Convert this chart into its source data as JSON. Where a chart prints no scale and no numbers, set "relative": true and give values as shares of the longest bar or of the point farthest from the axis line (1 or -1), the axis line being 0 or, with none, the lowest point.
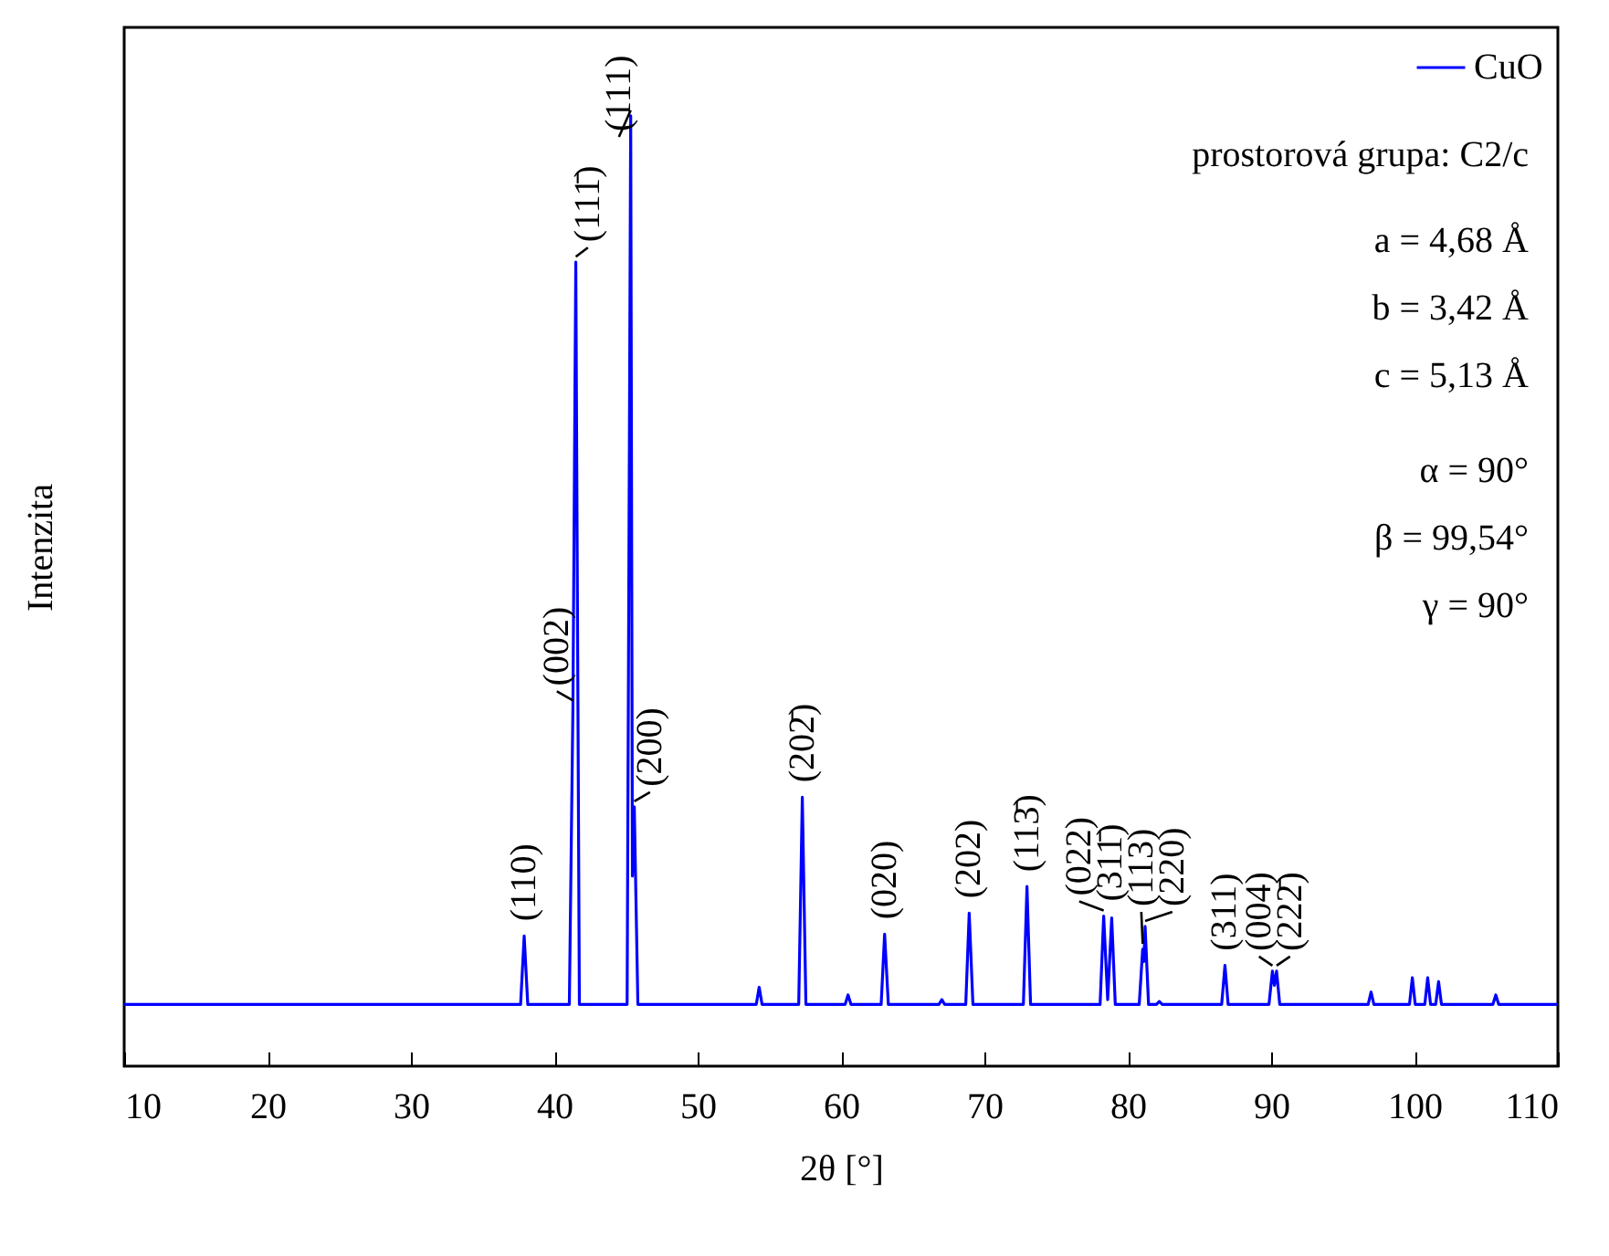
{
  "chart_data": {
    "type": "line",
    "xlabel": "2θ [°]",
    "ylabel": "Intenzita",
    "relative": true,
    "xlim": [
      10,
      110
    ],
    "xticks": [
      10,
      20,
      30,
      40,
      50,
      60,
      70,
      80,
      90,
      100,
      110
    ],
    "legend": "top right",
    "series": [
      {
        "name": "CuO",
        "color": "#0000ff",
        "x": [
          10,
          37.65,
          37.9,
          38.15,
          41.05,
          41.3,
          41.5,
          41.75,
          45.08,
          45.33,
          45.45,
          45.58,
          45.83,
          54.09,
          54.29,
          54.49,
          57.05,
          57.3,
          57.55,
          60.29,
          60.49,
          60.69,
          62.8,
          63.04,
          63.3,
          66.83,
          67.03,
          67.23,
          68.7,
          68.94,
          69.2,
          72.72,
          72.97,
          73.22,
          78.07,
          78.32,
          78.6,
          78.88,
          79.13,
          80.8,
          81.04,
          81.12,
          81.21,
          81.45,
          82.0,
          82.2,
          82.4,
          86.55,
          86.78,
          87.0,
          89.85,
          90.09,
          90.23,
          90.38,
          90.6,
          96.77,
          96.97,
          97.17,
          99.65,
          99.85,
          100.05,
          100.72,
          100.92,
          101.12,
          101.48,
          101.68,
          101.88,
          105.47,
          105.67,
          105.87,
          110
        ],
        "values": [
          0.065,
          0.065,
          0.137,
          0.065,
          0.065,
          0.379,
          0.846,
          0.065,
          0.065,
          1.0,
          0.2,
          0.273,
          0.065,
          0.065,
          0.083,
          0.065,
          0.065,
          0.283,
          0.065,
          0.065,
          0.075,
          0.065,
          0.065,
          0.139,
          0.065,
          0.065,
          0.07,
          0.065,
          0.065,
          0.161,
          0.065,
          0.065,
          0.189,
          0.065,
          0.065,
          0.158,
          0.07,
          0.156,
          0.065,
          0.065,
          0.123,
          0.11,
          0.147,
          0.065,
          0.065,
          0.068,
          0.065,
          0.065,
          0.106,
          0.065,
          0.065,
          0.1,
          0.085,
          0.1,
          0.065,
          0.065,
          0.078,
          0.065,
          0.065,
          0.093,
          0.065,
          0.065,
          0.093,
          0.065,
          0.065,
          0.089,
          0.065,
          0.065,
          0.075,
          0.065,
          0.065
        ]
      }
    ],
    "annotations": [
      "prostorová grupa: C2/c",
      "a = 4,68 Å",
      "b = 3,42 Å",
      "c = 5,13 Å",
      "α = 90°",
      "β = 99,54°",
      "γ = 90°",
      {
        "text": "(110)",
        "x": 37.9,
        "y": 0.137
      },
      {
        "text": "(002)",
        "x": 41.3,
        "y": 0.379
      },
      {
        "text": "(111̄)",
        "x": 41.5,
        "y": 0.846
      },
      {
        "text": "(111)",
        "x": 45.33,
        "y": 1.0
      },
      {
        "text": "(200)",
        "x": 45.58,
        "y": 0.273
      },
      {
        "text": "(202̄)",
        "x": 57.3,
        "y": 0.283
      },
      {
        "text": "(020)",
        "x": 63.04,
        "y": 0.139
      },
      {
        "text": "(202)",
        "x": 68.94,
        "y": 0.161
      },
      {
        "text": "(113̄)",
        "x": 72.97,
        "y": 0.189
      },
      {
        "text": "(022)",
        "x": 78.32,
        "y": 0.158
      },
      {
        "text": "(311̄)",
        "x": 78.88,
        "y": 0.156
      },
      {
        "text": "(113)",
        "x": 81.04,
        "y": 0.123
      },
      {
        "text": "(220)",
        "x": 81.21,
        "y": 0.147
      },
      {
        "text": "(311)",
        "x": 86.78,
        "y": 0.106
      },
      {
        "text": "(004)",
        "x": 90.09,
        "y": 0.1
      },
      {
        "text": "(222̄)",
        "x": 90.38,
        "y": 0.1
      }
    ]
  }
}
